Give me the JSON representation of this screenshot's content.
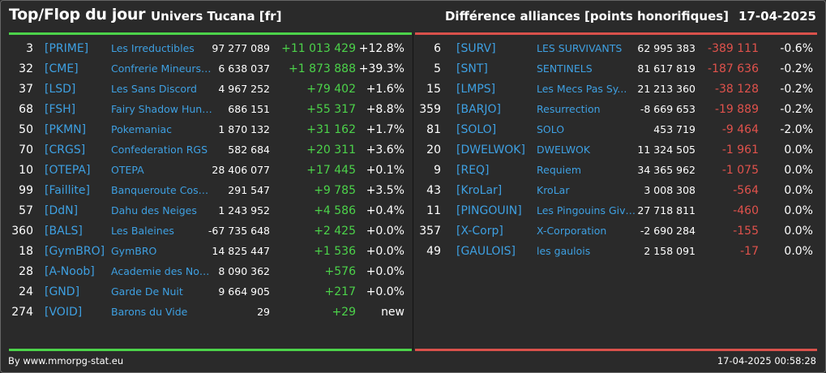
{
  "header": {
    "title": "Top/Flop du jour",
    "universe": "Univers Tucana [fr]",
    "category": "Différence alliances [points honorifiques]",
    "date": "17-04-2025"
  },
  "top": [
    {
      "rank": "3",
      "tag": "[PRIME]",
      "name": "Les Irreductibles",
      "points": "97 277 089",
      "delta": "+11 013 429",
      "pct": "+12.8%"
    },
    {
      "rank": "32",
      "tag": "[CME]",
      "name": "Confrerie Mineurs ...",
      "points": "6 638 037",
      "delta": "+1 873 888",
      "pct": "+39.3%"
    },
    {
      "rank": "37",
      "tag": "[LSD]",
      "name": "Les Sans Discord",
      "points": "4 967 252",
      "delta": "+79 402",
      "pct": "+1.6%"
    },
    {
      "rank": "68",
      "tag": "[FSH]",
      "name": "Fairy Shadow Hunte...",
      "points": "686 151",
      "delta": "+55 317",
      "pct": "+8.8%"
    },
    {
      "rank": "50",
      "tag": "[PKMN]",
      "name": "Pokemaniac",
      "points": "1 870 132",
      "delta": "+31 162",
      "pct": "+1.7%"
    },
    {
      "rank": "70",
      "tag": "[CRGS]",
      "name": "Confederation RGS",
      "points": "582 684",
      "delta": "+20 311",
      "pct": "+3.6%"
    },
    {
      "rank": "10",
      "tag": "[OTEPA]",
      "name": "OTEPA",
      "points": "28 406 077",
      "delta": "+17 445",
      "pct": "+0.1%"
    },
    {
      "rank": "99",
      "tag": "[Faillite]",
      "name": "Banqueroute Cosm...",
      "points": "291 547",
      "delta": "+9 785",
      "pct": "+3.5%"
    },
    {
      "rank": "57",
      "tag": "[DdN]",
      "name": "Dahu des Neiges",
      "points": "1 243 952",
      "delta": "+4 586",
      "pct": "+0.4%"
    },
    {
      "rank": "360",
      "tag": "[BALS]",
      "name": "Les Baleines",
      "points": "-67 735 648",
      "delta": "+2 425",
      "pct": "+0.0%"
    },
    {
      "rank": "18",
      "tag": "[GymBRO]",
      "name": "GymBRO",
      "points": "14 825 447",
      "delta": "+1 536",
      "pct": "+0.0%"
    },
    {
      "rank": "28",
      "tag": "[A-Noob]",
      "name": "Academie des Noob...",
      "points": "8 090 362",
      "delta": "+576",
      "pct": "+0.0%"
    },
    {
      "rank": "24",
      "tag": "[GND]",
      "name": "Garde De Nuit",
      "points": "9 664 905",
      "delta": "+217",
      "pct": "+0.0%"
    },
    {
      "rank": "274",
      "tag": "[VOID]",
      "name": "Barons du Vide",
      "points": "29",
      "delta": "+29",
      "pct": "new"
    }
  ],
  "flop": [
    {
      "rank": "6",
      "tag": "[SURV]",
      "name": "LES SURVIVANTS",
      "points": "62 995 383",
      "delta": "-389 111",
      "pct": "-0.6%"
    },
    {
      "rank": "5",
      "tag": "[SNT]",
      "name": "SENTINELS",
      "points": "81 617 819",
      "delta": "-187 636",
      "pct": "-0.2%"
    },
    {
      "rank": "15",
      "tag": "[LMPS]",
      "name": "Les Mecs Pas Sy...",
      "points": "21 213 360",
      "delta": "-38 128",
      "pct": "-0.2%"
    },
    {
      "rank": "359",
      "tag": "[BARJO]",
      "name": "Resurrection",
      "points": "-8 669 653",
      "delta": "-19 889",
      "pct": "-0.2%"
    },
    {
      "rank": "81",
      "tag": "[SOLO]",
      "name": "SOLO",
      "points": "453 719",
      "delta": "-9 464",
      "pct": "-2.0%"
    },
    {
      "rank": "20",
      "tag": "[DWELWOK]",
      "name": "DWELWOK",
      "points": "11 324 505",
      "delta": "-1 961",
      "pct": "0.0%"
    },
    {
      "rank": "9",
      "tag": "[REQ]",
      "name": "Requiem",
      "points": "34 365 962",
      "delta": "-1 075",
      "pct": "0.0%"
    },
    {
      "rank": "43",
      "tag": "[KroLar]",
      "name": "KroLar",
      "points": "3 008 308",
      "delta": "-564",
      "pct": "0.0%"
    },
    {
      "rank": "11",
      "tag": "[PINGOUIN]",
      "name": "Les Pingouins Givre...",
      "points": "27 718 811",
      "delta": "-460",
      "pct": "0.0%"
    },
    {
      "rank": "357",
      "tag": "[X-Corp]",
      "name": "X-Corporation",
      "points": "-2 690 284",
      "delta": "-155",
      "pct": "0.0%"
    },
    {
      "rank": "49",
      "tag": "[GAULOIS]",
      "name": "les gaulois",
      "points": "2 158 091",
      "delta": "-17",
      "pct": "0.0%"
    }
  ],
  "footer": {
    "source": "By www.mmorpg-stat.eu",
    "timestamp": "17-04-2025 00:58:28"
  },
  "colors": {
    "positive": "#4cd34a",
    "negative": "#e0524c",
    "link": "#3ea0e2",
    "background": "#2a2a2a"
  }
}
